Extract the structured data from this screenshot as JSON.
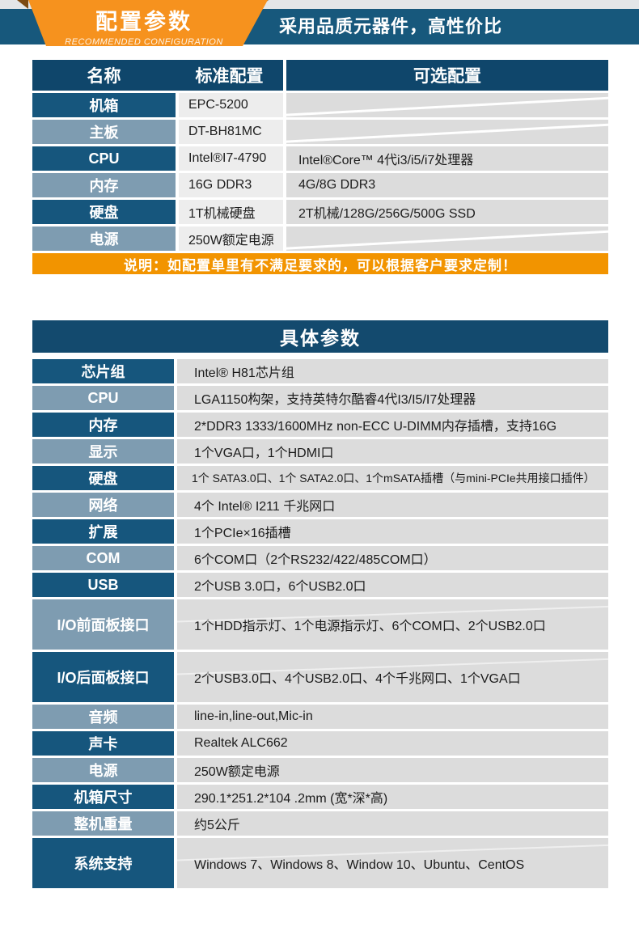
{
  "banner": {
    "ribbon_title": "配置参数",
    "ribbon_subtitle": "RECOMMENDED CONFIGURATION",
    "slogan": "采用品质元器件，高性价比"
  },
  "colors": {
    "band_teal": "#17587c",
    "ribbon_orange": "#f6921e",
    "fold_brown": "#7c4a11",
    "header_navy": "#0f466b",
    "label_dark": "#16567d",
    "label_light": "#7e9cb1",
    "cell_gray": "#dcdcdc",
    "note_orange": "#f29400"
  },
  "config_table": {
    "headers": [
      "名称",
      "标准配置",
      "可选配置"
    ],
    "rows": [
      {
        "name": "机箱",
        "standard": "EPC-5200",
        "optional": ""
      },
      {
        "name": "主板",
        "standard": "DT-BH81MC",
        "optional": ""
      },
      {
        "name": "CPU",
        "standard": "Intel®I7-4790",
        "optional": "Intel®Core™ 4代i3/i5/i7处理器"
      },
      {
        "name": "内存",
        "standard": "16G DDR3",
        "optional": "4G/8G DDR3"
      },
      {
        "name": "硬盘",
        "standard": "1T机械硬盘",
        "optional": "2T机械/128G/256G/500G SSD"
      },
      {
        "name": "电源",
        "standard": "250W额定电源",
        "optional": ""
      }
    ],
    "note": "说明：如配置单里有不满足要求的，可以根据客户要求定制！"
  },
  "detail_table": {
    "title": "具体参数",
    "rows": [
      {
        "name": "芯片组",
        "value": "Intel® H81芯片组"
      },
      {
        "name": "CPU",
        "value": "LGA1150构架，支持英特尔酷睿4代I3/I5/I7处理器"
      },
      {
        "name": "内存",
        "value": "2*DDR3 1333/1600MHz non-ECC U-DIMM内存插槽，支持16G"
      },
      {
        "name": "显示",
        "value": "1个VGA口，1个HDMI口"
      },
      {
        "name": "硬盘",
        "value": "1个 SATA3.0口、1个 SATA2.0口、1个mSATA插槽（与mini-PCIe共用接口插件）"
      },
      {
        "name": "网络",
        "value": "4个 Intel® I211 千兆网口"
      },
      {
        "name": "扩展",
        "value": "1个PCIe×16插槽"
      },
      {
        "name": "COM",
        "value": "6个COM口（2个RS232/422/485COM口）"
      },
      {
        "name": "USB",
        "value": "2个USB 3.0口，6个USB2.0口"
      },
      {
        "name": "I/O前面板接口",
        "value": "1个HDD指示灯、1个电源指示灯、6个COM口、2个USB2.0口"
      },
      {
        "name": "I/O后面板接口",
        "value": "2个USB3.0口、4个USB2.0口、4个千兆网口、1个VGA口"
      },
      {
        "name": "音频",
        "value": "line-in,line-out,Mic-in"
      },
      {
        "name": "声卡",
        "value": "Realtek ALC662"
      },
      {
        "name": "电源",
        "value": "250W额定电源"
      },
      {
        "name": "机箱尺寸",
        "value": "290.1*251.2*104 .2mm (宽*深*高)"
      },
      {
        "name": "整机重量",
        "value": "约5公斤"
      },
      {
        "name": "系统支持",
        "value": "Windows 7、Windows 8、Window 10、Ubuntu、CentOS"
      }
    ]
  }
}
